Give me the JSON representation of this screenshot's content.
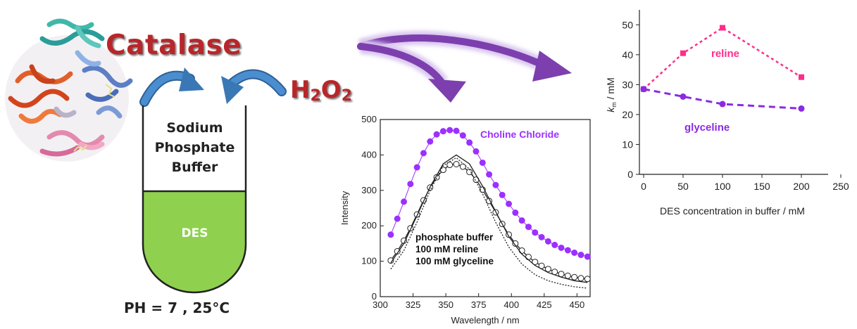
{
  "left_panel": {
    "enzyme_label": "Catalase",
    "substrate_label": "H2O2",
    "buffer_label": "Sodium Phosphate Buffer",
    "des_label": "DES",
    "condition_label": "PH = 7 , 25°C",
    "colors": {
      "title_red": "#b8262a",
      "des_green": "#8fd14f",
      "arrow_blue": "#3a78b5",
      "big_arrow_purple": "#7d3fae"
    }
  },
  "chart_data": [
    {
      "type": "line",
      "xlabel": "Wavelength / nm",
      "ylabel": "Intensity",
      "xlim": [
        300,
        460
      ],
      "ylim": [
        0,
        500
      ],
      "xticks": [
        300,
        325,
        350,
        375,
        400,
        425,
        450
      ],
      "yticks": [
        0,
        100,
        200,
        300,
        400,
        500
      ],
      "annotation": "Choline Chloride",
      "legend_lines": [
        "phosphate buffer",
        "100 mM reline",
        "100 mM glyceline"
      ],
      "series": [
        {
          "style": "filled-circles",
          "color": "#9b30ff",
          "x": [
            308,
            313,
            318,
            323,
            328,
            333,
            338,
            343,
            348,
            353,
            358,
            363,
            368,
            373,
            378,
            383,
            388,
            393,
            398,
            403,
            408,
            413,
            418,
            423,
            428,
            433,
            438,
            443,
            448,
            453,
            458
          ],
          "y": [
            175,
            220,
            268,
            318,
            365,
            405,
            438,
            458,
            467,
            470,
            468,
            455,
            435,
            410,
            378,
            345,
            315,
            287,
            262,
            237,
            215,
            197,
            181,
            168,
            156,
            146,
            138,
            131,
            124,
            118,
            113
          ]
        },
        {
          "style": "open-circles",
          "color": "#222222",
          "x": [
            308,
            313,
            318,
            323,
            328,
            333,
            338,
            343,
            348,
            353,
            358,
            363,
            368,
            373,
            378,
            383,
            388,
            393,
            398,
            403,
            408,
            413,
            418,
            423,
            428,
            433,
            438,
            443,
            448,
            453,
            458
          ],
          "y": [
            102,
            128,
            158,
            193,
            232,
            272,
            308,
            337,
            358,
            372,
            374,
            367,
            352,
            330,
            302,
            270,
            238,
            205,
            175,
            150,
            130,
            112,
            98,
            87,
            78,
            70,
            64,
            59,
            55,
            52,
            50
          ]
        },
        {
          "style": "solid-line",
          "color": "#222222",
          "x": [
            308,
            318,
            328,
            338,
            348,
            358,
            368,
            378,
            388,
            398,
            408,
            418,
            428,
            438,
            448,
            458
          ],
          "y": [
            95,
            150,
            228,
            310,
            375,
            400,
            375,
            312,
            240,
            170,
            120,
            88,
            68,
            55,
            45,
            40
          ]
        },
        {
          "style": "dotted-line",
          "color": "#222222",
          "x": [
            308,
            318,
            328,
            338,
            348,
            358,
            368,
            378,
            388,
            398,
            408,
            418,
            428,
            438,
            448,
            458
          ],
          "y": [
            78,
            130,
            210,
            300,
            370,
            392,
            360,
            290,
            210,
            140,
            92,
            62,
            45,
            35,
            28,
            24
          ]
        }
      ]
    },
    {
      "type": "line",
      "xlabel": "DES concentration in buffer / mM",
      "ylabel": "k_m / mM",
      "xlim": [
        0,
        250
      ],
      "ylim": [
        0,
        55
      ],
      "xticks": [
        0,
        50,
        100,
        150,
        200,
        250
      ],
      "yticks": [
        0,
        10,
        20,
        30,
        40,
        50
      ],
      "series": [
        {
          "name": "reline",
          "color": "#ff2d8a",
          "marker": "square",
          "x": [
            0,
            50,
            100,
            200
          ],
          "y": [
            28.5,
            40.5,
            49,
            32.5
          ]
        },
        {
          "name": "glyceline",
          "color": "#8a2be2",
          "marker": "circle",
          "x": [
            0,
            50,
            100,
            200
          ],
          "y": [
            28.5,
            26,
            23.5,
            22
          ]
        }
      ]
    }
  ]
}
